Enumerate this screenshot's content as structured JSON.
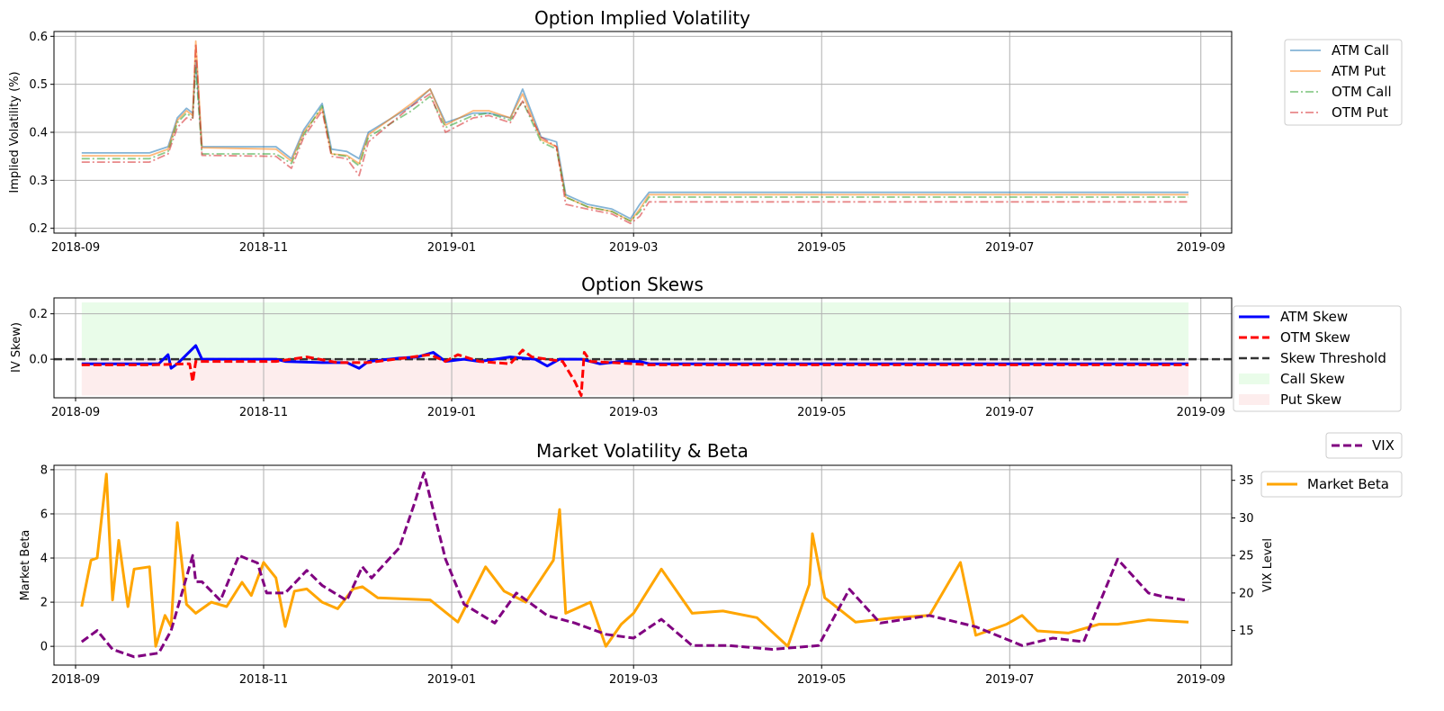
{
  "chart_data": [
    {
      "type": "line",
      "title": "Option Implied Volatility",
      "xlabel": "",
      "ylabel": "Implied Volatility (%)",
      "xlim": [
        "2018-08-25",
        "2019-09-11"
      ],
      "ylim": [
        0.19,
        0.61
      ],
      "x_ticks": [
        "2018-09",
        "2018-11",
        "2019-01",
        "2019-03",
        "2019-05",
        "2019-07",
        "2019-09"
      ],
      "y_ticks": [
        0.2,
        0.3,
        0.4,
        0.5,
        0.6
      ],
      "grid": true,
      "legend_position": "outside-right-top",
      "x": [
        "2018-09-03",
        "2018-09-25",
        "2018-10-01",
        "2018-10-04",
        "2018-10-07",
        "2018-10-09",
        "2018-10-10",
        "2018-10-12",
        "2018-11-05",
        "2018-11-10",
        "2018-11-14",
        "2018-11-20",
        "2018-11-23",
        "2018-11-28",
        "2018-12-02",
        "2018-12-05",
        "2018-12-19",
        "2018-12-25",
        "2018-12-30",
        "2019-01-08",
        "2019-01-13",
        "2019-01-20",
        "2019-01-24",
        "2019-01-30",
        "2019-02-04",
        "2019-02-07",
        "2019-02-14",
        "2019-02-22",
        "2019-02-28",
        "2019-03-03",
        "2019-03-06",
        "2019-08-28"
      ],
      "series": [
        {
          "name": "ATM Call",
          "color": "#1f77b4",
          "style": "solid",
          "values": [
            0.357,
            0.357,
            0.37,
            0.43,
            0.45,
            0.44,
            0.55,
            0.37,
            0.37,
            0.345,
            0.405,
            0.46,
            0.365,
            0.36,
            0.345,
            0.4,
            0.455,
            0.49,
            0.42,
            0.44,
            0.44,
            0.43,
            0.49,
            0.39,
            0.38,
            0.27,
            0.25,
            0.24,
            0.22,
            0.25,
            0.275,
            0.275
          ]
        },
        {
          "name": "ATM Put",
          "color": "#ff7f0e",
          "style": "solid",
          "values": [
            0.351,
            0.351,
            0.365,
            0.425,
            0.445,
            0.435,
            0.59,
            0.368,
            0.365,
            0.34,
            0.4,
            0.45,
            0.355,
            0.352,
            0.335,
            0.395,
            0.46,
            0.49,
            0.415,
            0.445,
            0.445,
            0.43,
            0.48,
            0.385,
            0.37,
            0.265,
            0.245,
            0.235,
            0.215,
            0.24,
            0.27,
            0.27
          ]
        },
        {
          "name": "OTM Call",
          "color": "#2ca02c",
          "style": "dashdot",
          "values": [
            0.345,
            0.345,
            0.36,
            0.42,
            0.44,
            0.43,
            0.535,
            0.355,
            0.355,
            0.335,
            0.395,
            0.455,
            0.355,
            0.35,
            0.33,
            0.39,
            0.445,
            0.475,
            0.41,
            0.435,
            0.44,
            0.425,
            0.465,
            0.38,
            0.365,
            0.265,
            0.245,
            0.235,
            0.215,
            0.235,
            0.265,
            0.265
          ]
        },
        {
          "name": "OTM Put",
          "color": "#d62728",
          "style": "dashdot",
          "values": [
            0.338,
            0.338,
            0.355,
            0.41,
            0.43,
            0.425,
            0.585,
            0.352,
            0.35,
            0.325,
            0.39,
            0.445,
            0.35,
            0.345,
            0.31,
            0.38,
            0.455,
            0.48,
            0.4,
            0.43,
            0.435,
            0.42,
            0.465,
            0.39,
            0.37,
            0.25,
            0.24,
            0.23,
            0.21,
            0.225,
            0.255,
            0.255
          ]
        }
      ]
    },
    {
      "type": "line",
      "title": "Option Skews",
      "xlabel": "",
      "ylabel": "IV Skew)",
      "xlim": [
        "2018-08-25",
        "2019-09-11"
      ],
      "ylim": [
        -0.17,
        0.27
      ],
      "x_ticks": [
        "2018-09",
        "2018-11",
        "2019-01",
        "2019-03",
        "2019-05",
        "2019-07",
        "2019-09"
      ],
      "y_ticks": [
        0.0,
        0.2
      ],
      "grid": true,
      "legend_position": "outside-right",
      "threshold": {
        "name": "Skew Threshold",
        "value": 0.0,
        "color": "#333333"
      },
      "shaded_regions": [
        {
          "name": "Call Skew",
          "from": 0.0,
          "to": 0.25,
          "color": "#90ee90"
        },
        {
          "name": "Put Skew",
          "from": -0.16,
          "to": 0.0,
          "color": "#f4a6a6"
        }
      ],
      "series": [
        {
          "name": "ATM Skew",
          "color": "#0000ff",
          "style": "solid",
          "x": [
            "2018-09-03",
            "2018-09-15",
            "2018-09-28",
            "2018-10-01",
            "2018-10-02",
            "2018-10-04",
            "2018-10-10",
            "2018-10-12",
            "2018-10-15",
            "2018-11-05",
            "2018-11-08",
            "2018-11-20",
            "2018-11-28",
            "2018-12-02",
            "2018-12-05",
            "2018-12-15",
            "2018-12-21",
            "2018-12-26",
            "2018-12-30",
            "2019-01-05",
            "2019-01-10",
            "2019-01-15",
            "2019-01-20",
            "2019-01-28",
            "2019-02-01",
            "2019-02-05",
            "2019-02-12",
            "2019-02-18",
            "2019-02-25",
            "2019-03-03",
            "2019-03-06",
            "2019-08-28"
          ],
          "values": [
            -0.02,
            -0.02,
            -0.02,
            0.02,
            -0.04,
            -0.02,
            0.06,
            0.0,
            0.0,
            0.0,
            -0.01,
            -0.015,
            -0.015,
            -0.04,
            -0.01,
            0.005,
            0.01,
            0.03,
            -0.01,
            0.0,
            -0.01,
            0.0,
            0.01,
            0.0,
            -0.03,
            0.0,
            0.0,
            -0.02,
            -0.01,
            -0.01,
            -0.02,
            -0.02
          ]
        },
        {
          "name": "OTM Skew",
          "color": "#ff0000",
          "style": "dashed",
          "x": [
            "2018-09-03",
            "2018-09-25",
            "2018-10-08",
            "2018-10-09",
            "2018-10-10",
            "2018-10-12",
            "2018-11-05",
            "2018-11-15",
            "2018-11-25",
            "2018-12-05",
            "2018-12-25",
            "2018-12-30",
            "2019-01-03",
            "2019-01-10",
            "2019-01-20",
            "2019-01-24",
            "2019-01-27",
            "2019-02-01",
            "2019-02-06",
            "2019-02-10",
            "2019-02-12",
            "2019-02-13",
            "2019-02-15",
            "2019-03-01",
            "2019-03-06",
            "2019-08-28"
          ],
          "values": [
            -0.025,
            -0.025,
            -0.02,
            -0.1,
            -0.01,
            -0.01,
            -0.01,
            0.01,
            -0.015,
            -0.015,
            0.02,
            -0.01,
            0.02,
            -0.01,
            -0.02,
            0.04,
            0.01,
            0.0,
            -0.01,
            -0.1,
            -0.16,
            0.03,
            -0.01,
            -0.02,
            -0.025,
            -0.025
          ]
        }
      ]
    },
    {
      "type": "line",
      "title": "Market Volatility & Beta",
      "xlabel": "",
      "ylabel": "Market Beta",
      "y2label": "VIX Level",
      "xlim": [
        "2018-08-25",
        "2019-09-11"
      ],
      "ylim": [
        -0.85,
        8.2
      ],
      "y2lim": [
        10.4,
        37.0
      ],
      "x_ticks": [
        "2018-09",
        "2018-11",
        "2019-01",
        "2019-03",
        "2019-05",
        "2019-07",
        "2019-09"
      ],
      "y_ticks": [
        0,
        2,
        4,
        6,
        8
      ],
      "y2_ticks": [
        15,
        20,
        25,
        30,
        35
      ],
      "grid": true,
      "series": [
        {
          "name": "Market Beta",
          "axis": "left",
          "color": "#ffa500",
          "style": "solid",
          "legend_position": "outside-right-top",
          "x": [
            "2018-09-03",
            "2018-09-06",
            "2018-09-08",
            "2018-09-11",
            "2018-09-13",
            "2018-09-15",
            "2018-09-18",
            "2018-09-20",
            "2018-09-25",
            "2018-09-27",
            "2018-09-30",
            "2018-10-02",
            "2018-10-04",
            "2018-10-07",
            "2018-10-10",
            "2018-10-15",
            "2018-10-20",
            "2018-10-25",
            "2018-10-28",
            "2018-11-01",
            "2018-11-05",
            "2018-11-08",
            "2018-11-11",
            "2018-11-15",
            "2018-11-20",
            "2018-11-25",
            "2018-11-30",
            "2018-12-03",
            "2018-12-08",
            "2018-12-25",
            "2019-01-03",
            "2019-01-12",
            "2019-01-18",
            "2019-01-25",
            "2019-02-03",
            "2019-02-05",
            "2019-02-07",
            "2019-02-15",
            "2019-02-20",
            "2019-02-25",
            "2019-03-01",
            "2019-03-10",
            "2019-03-20",
            "2019-03-30",
            "2019-04-10",
            "2019-04-20",
            "2019-04-27",
            "2019-04-28",
            "2019-05-02",
            "2019-05-12",
            "2019-05-25",
            "2019-06-05",
            "2019-06-15",
            "2019-06-20",
            "2019-06-30",
            "2019-07-05",
            "2019-07-10",
            "2019-07-20",
            "2019-07-30",
            "2019-08-05",
            "2019-08-15",
            "2019-08-28"
          ],
          "values": [
            1.8,
            3.9,
            4.0,
            7.8,
            2.1,
            4.8,
            1.8,
            3.5,
            3.6,
            0.0,
            1.4,
            0.9,
            5.6,
            1.9,
            1.5,
            2.0,
            1.8,
            2.9,
            2.3,
            3.8,
            3.1,
            0.9,
            2.5,
            2.6,
            2.0,
            1.7,
            2.6,
            2.7,
            2.2,
            2.1,
            1.1,
            3.6,
            2.5,
            2.0,
            3.9,
            6.2,
            1.5,
            2.0,
            0.0,
            1.0,
            1.5,
            3.5,
            1.5,
            1.6,
            1.3,
            0.0,
            2.8,
            5.1,
            2.2,
            1.1,
            1.3,
            1.4,
            3.8,
            0.5,
            1.0,
            1.4,
            0.7,
            0.6,
            1.0,
            1.0,
            1.2,
            1.1
          ]
        },
        {
          "name": "VIX",
          "axis": "right",
          "color": "#800080",
          "style": "dashed",
          "legend_position": "outside-right-top",
          "x": [
            "2018-09-03",
            "2018-09-08",
            "2018-09-13",
            "2018-09-20",
            "2018-09-28",
            "2018-10-02",
            "2018-10-09",
            "2018-10-10",
            "2018-10-12",
            "2018-10-18",
            "2018-10-24",
            "2018-10-30",
            "2018-11-02",
            "2018-11-08",
            "2018-11-15",
            "2018-11-20",
            "2018-11-28",
            "2018-12-03",
            "2018-12-06",
            "2018-12-15",
            "2018-12-20",
            "2018-12-23",
            "2018-12-30",
            "2019-01-05",
            "2019-01-15",
            "2019-01-22",
            "2019-02-01",
            "2019-02-10",
            "2019-02-20",
            "2019-03-01",
            "2019-03-10",
            "2019-03-20",
            "2019-04-01",
            "2019-04-15",
            "2019-04-30",
            "2019-05-10",
            "2019-05-20",
            "2019-06-05",
            "2019-06-20",
            "2019-07-05",
            "2019-07-15",
            "2019-07-25",
            "2019-08-05",
            "2019-08-15",
            "2019-08-20",
            "2019-08-28"
          ],
          "values": [
            13.5,
            15.0,
            12.5,
            11.5,
            12.0,
            15.0,
            25.0,
            21.5,
            21.5,
            19.0,
            25.0,
            24.0,
            20.0,
            20.0,
            23.0,
            21.0,
            19.0,
            23.5,
            22.0,
            26.0,
            32.0,
            36.0,
            24.5,
            18.5,
            16.0,
            20.0,
            17.0,
            16.0,
            14.5,
            14.0,
            16.5,
            13.0,
            13.0,
            12.5,
            13.0,
            20.5,
            16.0,
            17.0,
            15.5,
            13.0,
            14.0,
            13.5,
            24.5,
            20.0,
            19.5,
            19.0
          ]
        }
      ]
    }
  ]
}
